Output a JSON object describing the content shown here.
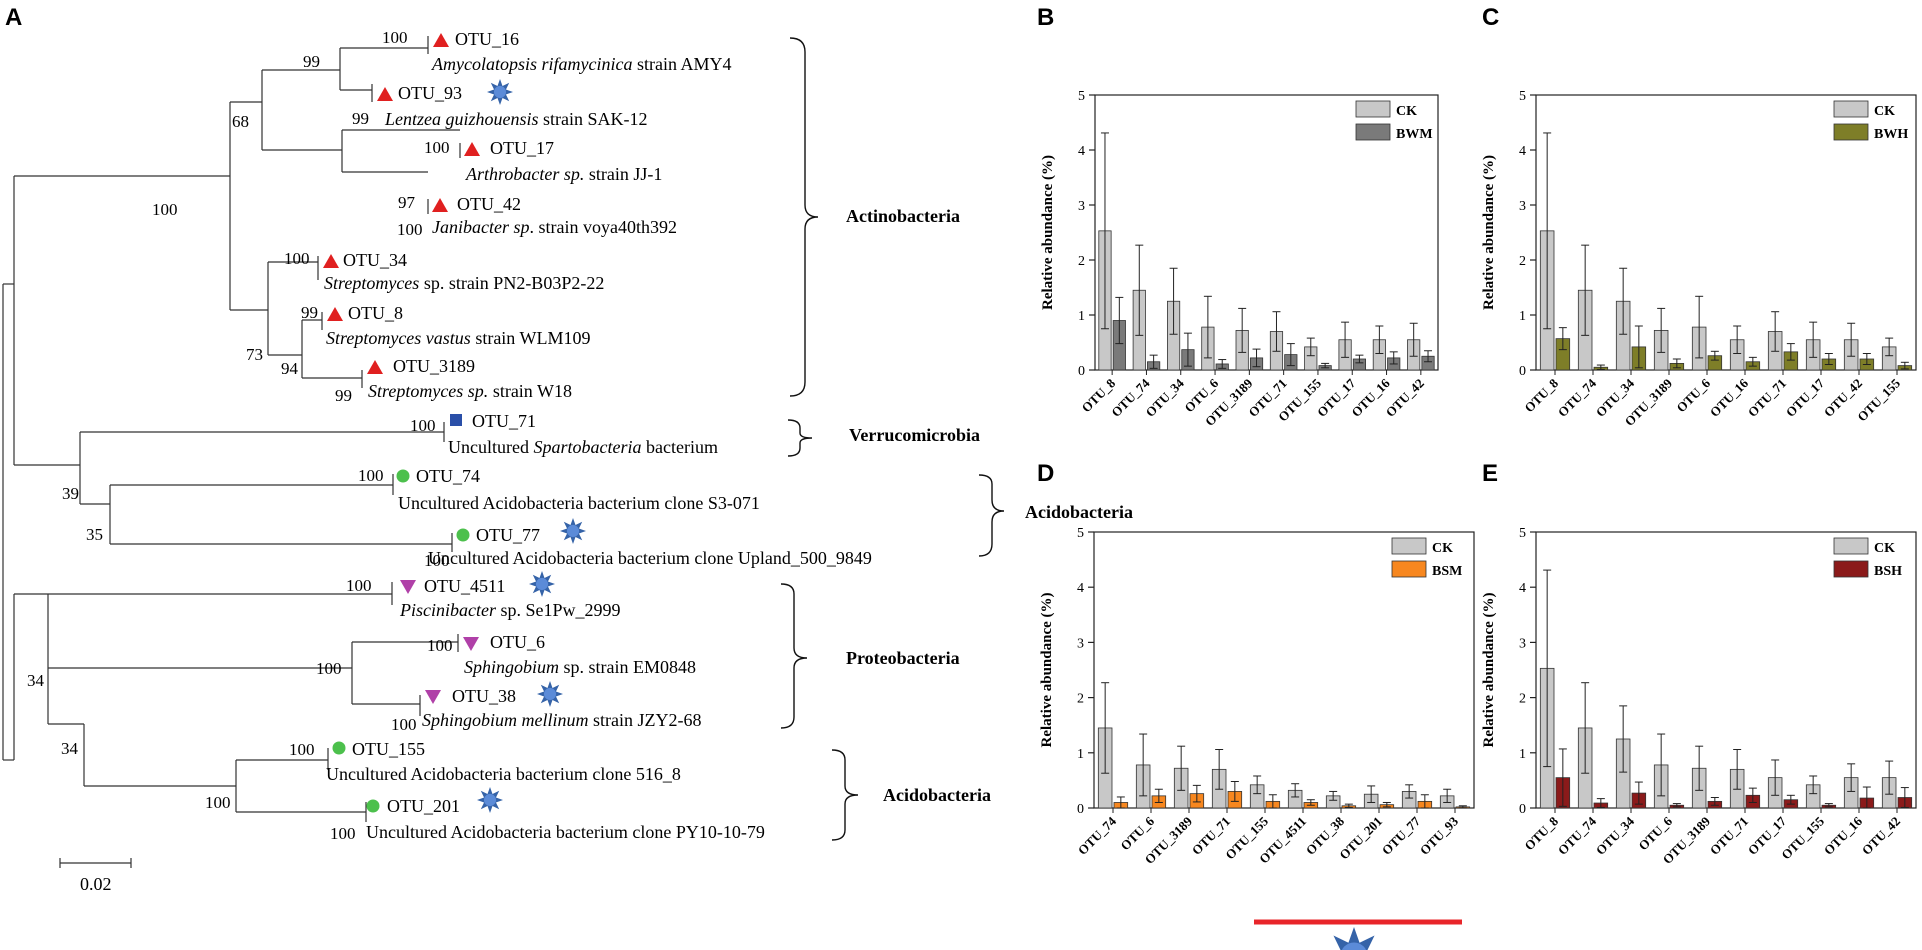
{
  "panels": {
    "A": "A",
    "B": "B",
    "C": "C",
    "D": "D",
    "E": "E"
  },
  "colors": {
    "ck": "#c8c8c8",
    "bwm": "#7a7a7a",
    "bwh": "#7e7e28",
    "bsm": "#f7871f",
    "bsh": "#8b1a1a",
    "star": "#3563a8",
    "red_tri": "#e02020",
    "blue_sq": "#2a4fa8",
    "green_dot": "#4cc04c",
    "magenta_tri": "#b040a8",
    "underline": "#e8252a"
  },
  "tree": {
    "taxa": [
      {
        "otu": "OTU_16",
        "name_italic": "Amycolatopsis rifamycinica",
        "name_rest": " strain AMY4",
        "marker": "red-triangle",
        "star": false
      },
      {
        "otu": "OTU_93",
        "name_italic": "Lentzea guizhouensis",
        "name_rest": " strain SAK-12",
        "marker": "red-triangle",
        "star": true
      },
      {
        "otu": "OTU_17",
        "name_italic": "Arthrobacter sp.",
        "name_rest": " strain JJ-1",
        "marker": "red-triangle",
        "star": false
      },
      {
        "otu": "OTU_42",
        "name_italic": "Janibacter sp",
        "name_rest": ". strain voya40th392",
        "marker": "red-triangle",
        "star": false
      },
      {
        "otu": "OTU_34",
        "name_italic": "Streptomyces",
        "name_rest": " sp. strain PN2-B03P2-22",
        "marker": "red-triangle",
        "star": false
      },
      {
        "otu": "OTU_8",
        "name_italic": "Streptomyces vastus",
        "name_rest": " strain WLM109",
        "marker": "red-triangle",
        "star": false
      },
      {
        "otu": "OTU_3189",
        "name_italic": "Streptomyces sp.",
        "name_rest": " strain W18",
        "marker": "red-triangle",
        "star": false
      },
      {
        "otu": "OTU_71",
        "name_pre": "Uncultured ",
        "name_italic": "Spartobacteria",
        "name_rest": " bacterium",
        "marker": "blue-square",
        "star": false
      },
      {
        "otu": "OTU_74",
        "name_rest": "Uncultured Acidobacteria bacterium clone S3-071",
        "marker": "green-circle",
        "star": false
      },
      {
        "otu": "OTU_77",
        "name_rest": "Uncultured Acidobacteria bacterium clone Upland_500_9849",
        "marker": "green-circle",
        "star": true
      },
      {
        "otu": "OTU_4511",
        "name_italic": "Piscinibacter",
        "name_rest": " sp. Se1Pw_2999",
        "marker": "magenta-triangle",
        "star": true
      },
      {
        "otu": "OTU_6",
        "name_italic": "Sphingobium",
        "name_rest": " sp. strain EM0848",
        "marker": "magenta-triangle",
        "star": false
      },
      {
        "otu": "OTU_38",
        "name_italic": "Sphingobium mellinum",
        "name_rest": " strain JZY2-68",
        "marker": "magenta-triangle",
        "star": true
      },
      {
        "otu": "OTU_155",
        "name_rest": "Uncultured Acidobacteria bacterium clone 516_8",
        "marker": "green-circle",
        "star": false
      },
      {
        "otu": "OTU_201",
        "name_rest": "Uncultured Acidobacteria bacterium clone PY10-10-79",
        "marker": "green-circle",
        "star": true
      }
    ],
    "bootstraps": [
      "100",
      "99",
      "99",
      "68",
      "100",
      "97",
      "100",
      "100",
      "100",
      "99",
      "73",
      "94",
      "99",
      "100",
      "100",
      "39",
      "35",
      "100",
      "100",
      "100",
      "100",
      "100",
      "34",
      "34",
      "100",
      "100",
      "100"
    ],
    "phyla": [
      "Actinobacteria",
      "Verrucomicrobia",
      "Acidobacteria",
      "Proteobacteria",
      "Acidobacteria"
    ],
    "scale_label": "0.02"
  },
  "chart_data": [
    {
      "panel": "B",
      "type": "bar",
      "ylabel": "Relative abundance (%)",
      "ylim": [
        0,
        5
      ],
      "yticks": [
        0,
        1,
        2,
        3,
        4,
        5
      ],
      "categories": [
        "OTU_8",
        "OTU_74",
        "OTU_34",
        "OTU_6",
        "OTU_3189",
        "OTU_71",
        "OTU_155",
        "OTU_17",
        "OTU_16",
        "OTU_42"
      ],
      "series": [
        {
          "name": "CK",
          "values": [
            2.53,
            1.45,
            1.25,
            0.78,
            0.72,
            0.7,
            0.42,
            0.55,
            0.55,
            0.55
          ],
          "errors": [
            1.78,
            0.82,
            0.6,
            0.56,
            0.4,
            0.36,
            0.16,
            0.32,
            0.25,
            0.3
          ]
        },
        {
          "name": "BWM",
          "values": [
            0.9,
            0.15,
            0.37,
            0.11,
            0.22,
            0.28,
            0.08,
            0.2,
            0.22,
            0.25
          ],
          "errors": [
            0.42,
            0.12,
            0.3,
            0.08,
            0.16,
            0.2,
            0.04,
            0.07,
            0.11,
            0.1
          ]
        }
      ]
    },
    {
      "panel": "C",
      "type": "bar",
      "ylabel": "Relative abundance (%)",
      "ylim": [
        0,
        5
      ],
      "yticks": [
        0,
        1,
        2,
        3,
        4,
        5
      ],
      "categories": [
        "OTU_8",
        "OTU_74",
        "OTU_34",
        "OTU_3189",
        "OTU_6",
        "OTU_16",
        "OTU_71",
        "OTU_17",
        "OTU_42",
        "OTU_155"
      ],
      "series": [
        {
          "name": "CK",
          "values": [
            2.53,
            1.45,
            1.25,
            0.72,
            0.78,
            0.55,
            0.7,
            0.55,
            0.55,
            0.42
          ],
          "errors": [
            1.78,
            0.82,
            0.6,
            0.4,
            0.56,
            0.25,
            0.36,
            0.32,
            0.3,
            0.16
          ]
        },
        {
          "name": "BWH",
          "values": [
            0.57,
            0.05,
            0.42,
            0.12,
            0.26,
            0.15,
            0.33,
            0.2,
            0.2,
            0.08
          ],
          "errors": [
            0.2,
            0.04,
            0.38,
            0.08,
            0.08,
            0.08,
            0.15,
            0.1,
            0.1,
            0.06
          ]
        }
      ]
    },
    {
      "panel": "D",
      "type": "bar",
      "ylabel": "Relative abundance (%)",
      "ylim": [
        0,
        5
      ],
      "yticks": [
        0,
        1,
        2,
        3,
        4,
        5
      ],
      "categories": [
        "OTU_74",
        "OTU_6",
        "OTU_3189",
        "OTU_71",
        "OTU_155",
        "OTU_4511",
        "OTU_38",
        "OTU_201",
        "OTU_77",
        "OTU_93"
      ],
      "series": [
        {
          "name": "CK",
          "values": [
            1.45,
            0.78,
            0.72,
            0.7,
            0.42,
            0.32,
            0.22,
            0.25,
            0.3,
            0.22
          ],
          "errors": [
            0.82,
            0.56,
            0.4,
            0.36,
            0.16,
            0.12,
            0.08,
            0.15,
            0.12,
            0.12
          ]
        },
        {
          "name": "BSM",
          "values": [
            0.1,
            0.22,
            0.26,
            0.3,
            0.12,
            0.1,
            0.04,
            0.06,
            0.12,
            0.02
          ],
          "errors": [
            0.1,
            0.12,
            0.15,
            0.18,
            0.12,
            0.05,
            0.03,
            0.04,
            0.12,
            0.02
          ]
        }
      ]
    },
    {
      "panel": "E",
      "type": "bar",
      "ylabel": "Relative abundance (%)",
      "ylim": [
        0,
        5
      ],
      "yticks": [
        0,
        1,
        2,
        3,
        4,
        5
      ],
      "categories": [
        "OTU_8",
        "OTU_74",
        "OTU_34",
        "OTU_6",
        "OTU_3189",
        "OTU_71",
        "OTU_17",
        "OTU_155",
        "OTU_16",
        "OTU_42"
      ],
      "series": [
        {
          "name": "CK",
          "values": [
            2.53,
            1.45,
            1.25,
            0.78,
            0.72,
            0.7,
            0.55,
            0.42,
            0.55,
            0.55
          ],
          "errors": [
            1.78,
            0.82,
            0.6,
            0.56,
            0.4,
            0.36,
            0.32,
            0.16,
            0.25,
            0.3
          ]
        },
        {
          "name": "BSH",
          "values": [
            0.55,
            0.09,
            0.27,
            0.05,
            0.12,
            0.23,
            0.15,
            0.05,
            0.18,
            0.19
          ],
          "errors": [
            0.52,
            0.08,
            0.2,
            0.03,
            0.07,
            0.13,
            0.08,
            0.03,
            0.2,
            0.18
          ]
        }
      ]
    }
  ]
}
